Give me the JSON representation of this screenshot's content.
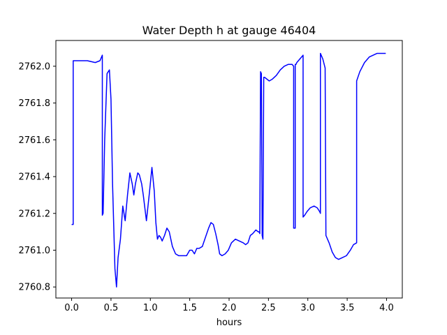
{
  "chart_data": {
    "type": "line",
    "title": "Water Depth h at gauge 46404",
    "xlabel": "hours",
    "ylabel": "",
    "xlim": [
      -0.2,
      4.2
    ],
    "ylim": [
      2760.74,
      2762.14
    ],
    "xticks": [
      0.0,
      0.5,
      1.0,
      1.5,
      2.0,
      2.5,
      3.0,
      3.5,
      4.0
    ],
    "xtick_labels": [
      "0.0",
      "0.5",
      "1.0",
      "1.5",
      "2.0",
      "2.5",
      "3.0",
      "3.5",
      "4.0"
    ],
    "yticks": [
      2760.8,
      2761.0,
      2761.2,
      2761.4,
      2761.6,
      2761.8,
      2762.0
    ],
    "ytick_labels": [
      "2760.8",
      "2761.0",
      "2761.2",
      "2761.4",
      "2761.6",
      "2761.8",
      "2762.0"
    ],
    "grid": false,
    "series": [
      {
        "color": "#0000ff",
        "x": [
          0.0,
          0.02,
          0.02,
          0.2,
          0.3,
          0.36,
          0.39,
          0.39,
          0.4,
          0.42,
          0.45,
          0.48,
          0.5,
          0.52,
          0.55,
          0.57,
          0.59,
          0.62,
          0.65,
          0.68,
          0.71,
          0.74,
          0.77,
          0.79,
          0.81,
          0.84,
          0.86,
          0.89,
          0.91,
          0.95,
          0.99,
          1.02,
          1.05,
          1.07,
          1.09,
          1.11,
          1.13,
          1.15,
          1.18,
          1.21,
          1.24,
          1.28,
          1.32,
          1.36,
          1.41,
          1.46,
          1.5,
          1.53,
          1.56,
          1.59,
          1.62,
          1.66,
          1.7,
          1.74,
          1.77,
          1.8,
          1.83,
          1.86,
          1.88,
          1.91,
          1.95,
          1.99,
          2.03,
          2.08,
          2.13,
          2.18,
          2.21,
          2.24,
          2.27,
          2.3,
          2.34,
          2.37,
          2.38,
          2.39,
          2.4,
          2.41,
          2.42,
          2.43,
          2.44,
          2.45,
          2.48,
          2.51,
          2.55,
          2.6,
          2.65,
          2.7,
          2.75,
          2.8,
          2.82,
          2.82,
          2.84,
          2.84,
          2.85,
          2.86,
          2.86,
          2.9,
          2.94,
          2.94,
          2.96,
          2.99,
          3.03,
          3.08,
          3.12,
          3.15,
          3.16,
          3.16,
          3.19,
          3.22,
          3.22,
          3.23,
          3.27,
          3.31,
          3.35,
          3.39,
          3.44,
          3.49,
          3.54,
          3.58,
          3.62,
          3.62,
          3.66,
          3.72,
          3.78,
          3.83,
          3.88,
          3.93,
          3.97,
          3.99
        ],
        "y": [
          2761.14,
          2761.14,
          2762.03,
          2762.03,
          2762.02,
          2762.03,
          2762.06,
          2761.19,
          2761.2,
          2761.6,
          2761.96,
          2761.98,
          2761.82,
          2761.36,
          2760.9,
          2760.8,
          2760.96,
          2761.06,
          2761.24,
          2761.16,
          2761.3,
          2761.42,
          2761.36,
          2761.3,
          2761.36,
          2761.42,
          2761.41,
          2761.36,
          2761.3,
          2761.16,
          2761.32,
          2761.45,
          2761.32,
          2761.15,
          2761.06,
          2761.08,
          2761.07,
          2761.05,
          2761.08,
          2761.12,
          2761.1,
          2761.02,
          2760.98,
          2760.97,
          2760.97,
          2760.97,
          2761.0,
          2761.0,
          2760.98,
          2761.01,
          2761.01,
          2761.02,
          2761.07,
          2761.12,
          2761.15,
          2761.14,
          2761.09,
          2761.03,
          2760.98,
          2760.97,
          2760.98,
          2761.0,
          2761.04,
          2761.06,
          2761.05,
          2761.04,
          2761.03,
          2761.04,
          2761.08,
          2761.09,
          2761.11,
          2761.1,
          2761.1,
          2761.09,
          2761.97,
          2761.96,
          2761.08,
          2761.06,
          2761.94,
          2761.94,
          2761.93,
          2761.92,
          2761.93,
          2761.95,
          2761.98,
          2762.0,
          2762.01,
          2762.01,
          2762.0,
          2761.12,
          2761.12,
          2762.01,
          2762.01,
          2762.02,
          2762.02,
          2762.04,
          2762.06,
          2761.18,
          2761.19,
          2761.21,
          2761.23,
          2761.24,
          2761.23,
          2761.21,
          2761.2,
          2762.07,
          2762.04,
          2761.99,
          2761.97,
          2761.08,
          2761.04,
          2760.99,
          2760.96,
          2760.95,
          2760.96,
          2760.97,
          2761.0,
          2761.03,
          2761.04,
          2761.92,
          2761.97,
          2762.02,
          2762.05,
          2762.06,
          2762.07,
          2762.07,
          2762.07,
          2762.07
        ]
      }
    ]
  }
}
